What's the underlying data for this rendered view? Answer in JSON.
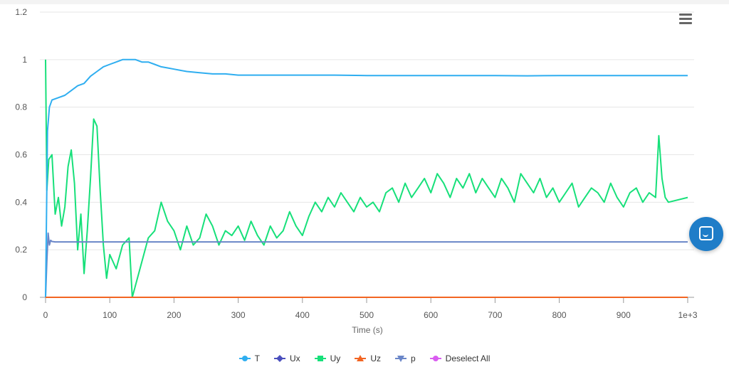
{
  "chart_data": {
    "type": "line",
    "xlabel": "Time (s)",
    "ylabel": "",
    "xlim": [
      0,
      1000
    ],
    "ylim": [
      0,
      1.2
    ],
    "x_tick_labels": [
      "0",
      "100",
      "200",
      "300",
      "400",
      "500",
      "600",
      "700",
      "800",
      "900",
      "1e+3"
    ],
    "x_ticks": [
      0,
      100,
      200,
      300,
      400,
      500,
      600,
      700,
      800,
      900,
      1000
    ],
    "y_tick_labels": [
      "0",
      "0.2",
      "0.4",
      "0.6",
      "0.8",
      "1",
      "1.2"
    ],
    "y_ticks": [
      0,
      0.2,
      0.4,
      0.6,
      0.8,
      1.0,
      1.2
    ],
    "grid": true,
    "legend_position": "bottom",
    "series": [
      {
        "name": "T",
        "color": "#2faef0",
        "marker": "circle",
        "x": [
          0,
          3,
          6,
          10,
          20,
          30,
          40,
          50,
          60,
          70,
          80,
          90,
          100,
          110,
          120,
          130,
          140,
          150,
          160,
          170,
          180,
          190,
          200,
          210,
          220,
          240,
          260,
          280,
          300,
          350,
          400,
          450,
          500,
          550,
          600,
          650,
          700,
          750,
          800,
          850,
          900,
          950,
          1000
        ],
        "values": [
          0.0,
          0.7,
          0.8,
          0.83,
          0.84,
          0.85,
          0.87,
          0.89,
          0.9,
          0.93,
          0.95,
          0.97,
          0.98,
          0.99,
          1.0,
          1.0,
          1.0,
          0.99,
          0.99,
          0.98,
          0.97,
          0.965,
          0.96,
          0.955,
          0.95,
          0.945,
          0.94,
          0.94,
          0.935,
          0.935,
          0.935,
          0.935,
          0.933,
          0.933,
          0.933,
          0.933,
          0.933,
          0.932,
          0.933,
          0.933,
          0.933,
          0.933,
          0.933
        ]
      },
      {
        "name": "Ux",
        "color": "#4a4fbd",
        "marker": "diamond",
        "x": [
          0,
          1000
        ],
        "values": [
          0.0,
          0.0
        ]
      },
      {
        "name": "Uy",
        "color": "#17e07a",
        "marker": "square",
        "x": [
          0,
          2,
          5,
          10,
          15,
          20,
          25,
          30,
          35,
          40,
          45,
          50,
          55,
          60,
          65,
          70,
          75,
          80,
          85,
          90,
          95,
          100,
          110,
          120,
          130,
          135,
          140,
          150,
          160,
          170,
          180,
          190,
          200,
          210,
          220,
          230,
          240,
          250,
          260,
          270,
          280,
          290,
          300,
          310,
          320,
          330,
          340,
          350,
          360,
          370,
          380,
          390,
          400,
          410,
          420,
          430,
          440,
          450,
          460,
          470,
          480,
          490,
          500,
          510,
          520,
          530,
          540,
          550,
          560,
          570,
          580,
          590,
          600,
          610,
          620,
          630,
          640,
          650,
          660,
          670,
          680,
          690,
          700,
          710,
          720,
          730,
          740,
          750,
          760,
          770,
          780,
          790,
          800,
          810,
          820,
          830,
          840,
          850,
          860,
          870,
          880,
          890,
          900,
          910,
          920,
          930,
          940,
          950,
          955,
          960,
          965,
          970,
          1000
        ],
        "values": [
          1.0,
          0.45,
          0.58,
          0.6,
          0.35,
          0.42,
          0.3,
          0.38,
          0.55,
          0.62,
          0.48,
          0.2,
          0.35,
          0.1,
          0.28,
          0.5,
          0.75,
          0.72,
          0.45,
          0.22,
          0.08,
          0.18,
          0.12,
          0.22,
          0.25,
          0.0,
          0.05,
          0.15,
          0.25,
          0.28,
          0.4,
          0.32,
          0.28,
          0.2,
          0.3,
          0.22,
          0.25,
          0.35,
          0.3,
          0.22,
          0.28,
          0.26,
          0.3,
          0.24,
          0.32,
          0.26,
          0.22,
          0.3,
          0.25,
          0.28,
          0.36,
          0.3,
          0.26,
          0.34,
          0.4,
          0.36,
          0.42,
          0.38,
          0.44,
          0.4,
          0.36,
          0.42,
          0.38,
          0.4,
          0.36,
          0.44,
          0.46,
          0.4,
          0.48,
          0.42,
          0.46,
          0.5,
          0.44,
          0.52,
          0.48,
          0.42,
          0.5,
          0.46,
          0.52,
          0.44,
          0.5,
          0.46,
          0.42,
          0.5,
          0.46,
          0.4,
          0.52,
          0.48,
          0.44,
          0.5,
          0.42,
          0.46,
          0.4,
          0.44,
          0.48,
          0.38,
          0.42,
          0.46,
          0.44,
          0.4,
          0.48,
          0.42,
          0.38,
          0.44,
          0.46,
          0.4,
          0.44,
          0.42,
          0.68,
          0.5,
          0.42,
          0.4,
          0.42
        ]
      },
      {
        "name": "Uz",
        "color": "#f26522",
        "marker": "triangle",
        "x": [
          0,
          1000
        ],
        "values": [
          0.0,
          0.0
        ]
      },
      {
        "name": "p",
        "color": "#6a86c8",
        "marker": "triangle-down",
        "x": [
          0,
          2,
          4,
          6,
          8,
          10,
          15,
          20,
          100,
          200,
          300,
          400,
          500,
          600,
          700,
          800,
          900,
          1000
        ],
        "values": [
          0.0,
          0.15,
          0.27,
          0.22,
          0.24,
          0.235,
          0.233,
          0.233,
          0.233,
          0.233,
          0.233,
          0.233,
          0.233,
          0.233,
          0.233,
          0.233,
          0.233,
          0.233
        ]
      }
    ]
  },
  "legend": {
    "items": [
      {
        "label": "T",
        "color": "#2faef0",
        "icon": "circle-marker-icon"
      },
      {
        "label": "Ux",
        "color": "#4a4fbd",
        "icon": "diamond-marker-icon"
      },
      {
        "label": "Uy",
        "color": "#17e07a",
        "icon": "square-marker-icon"
      },
      {
        "label": "Uz",
        "color": "#f26522",
        "icon": "triangle-marker-icon"
      },
      {
        "label": "p",
        "color": "#6a86c8",
        "icon": "triangle-down-marker-icon"
      },
      {
        "label": "Deselect All",
        "color": "#d95cf0",
        "icon": "circle-marker-icon"
      }
    ]
  },
  "toolbar": {
    "menu_icon": "hamburger-menu-icon"
  },
  "chat": {
    "icon": "chat-icon",
    "color": "#1f7dc8"
  }
}
